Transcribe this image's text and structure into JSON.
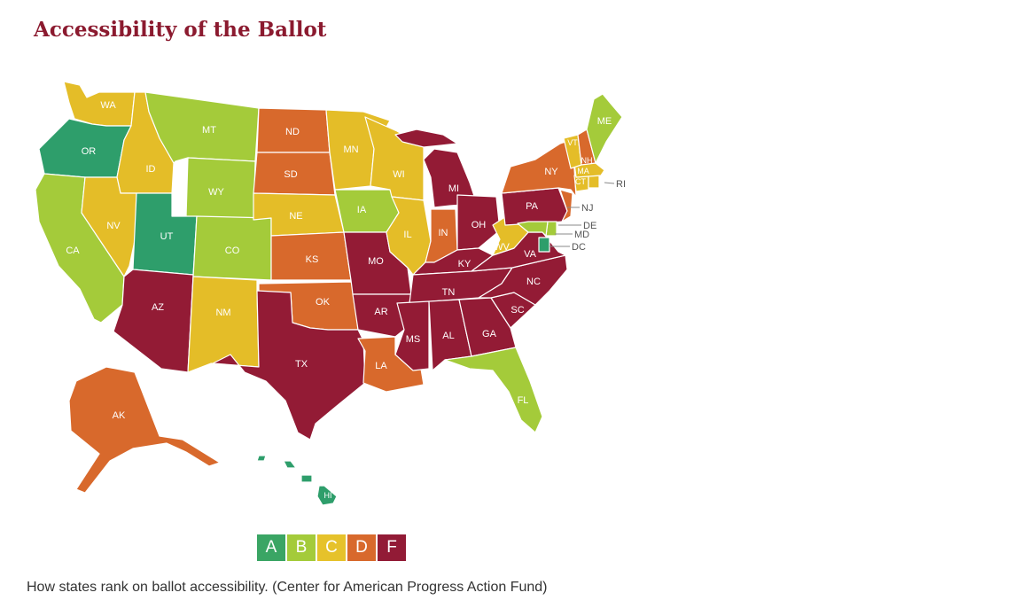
{
  "title": "Accessibility of the Ballot",
  "caption": "How states rank on ballot accessibility. (Center for American Progress Action Fund)",
  "legend": [
    {
      "grade": "A",
      "color": "#3aa564"
    },
    {
      "grade": "B",
      "color": "#a4cb3a"
    },
    {
      "grade": "C",
      "color": "#e6c22b"
    },
    {
      "grade": "D",
      "color": "#d8692c"
    },
    {
      "grade": "F",
      "color": "#921b36"
    }
  ],
  "map_colors": {
    "A": "#2e9e6b",
    "B": "#a4cb3a",
    "C": "#e4bd28",
    "D": "#d8692c",
    "F": "#931b35"
  },
  "states": [
    {
      "abbr": "WA",
      "grade": "C"
    },
    {
      "abbr": "OR",
      "grade": "A"
    },
    {
      "abbr": "CA",
      "grade": "B"
    },
    {
      "abbr": "ID",
      "grade": "C"
    },
    {
      "abbr": "NV",
      "grade": "C"
    },
    {
      "abbr": "MT",
      "grade": "B"
    },
    {
      "abbr": "WY",
      "grade": "B"
    },
    {
      "abbr": "UT",
      "grade": "A"
    },
    {
      "abbr": "AZ",
      "grade": "F"
    },
    {
      "abbr": "CO",
      "grade": "B"
    },
    {
      "abbr": "NM",
      "grade": "C"
    },
    {
      "abbr": "ND",
      "grade": "D"
    },
    {
      "abbr": "SD",
      "grade": "D"
    },
    {
      "abbr": "NE",
      "grade": "C"
    },
    {
      "abbr": "KS",
      "grade": "D"
    },
    {
      "abbr": "OK",
      "grade": "D"
    },
    {
      "abbr": "TX",
      "grade": "F"
    },
    {
      "abbr": "MN",
      "grade": "C"
    },
    {
      "abbr": "IA",
      "grade": "B"
    },
    {
      "abbr": "MO",
      "grade": "F"
    },
    {
      "abbr": "AR",
      "grade": "F"
    },
    {
      "abbr": "LA",
      "grade": "D"
    },
    {
      "abbr": "WI",
      "grade": "C"
    },
    {
      "abbr": "IL",
      "grade": "C"
    },
    {
      "abbr": "MI",
      "grade": "F"
    },
    {
      "abbr": "IN",
      "grade": "D"
    },
    {
      "abbr": "OH",
      "grade": "F"
    },
    {
      "abbr": "KY",
      "grade": "F"
    },
    {
      "abbr": "TN",
      "grade": "F"
    },
    {
      "abbr": "MS",
      "grade": "F"
    },
    {
      "abbr": "AL",
      "grade": "F"
    },
    {
      "abbr": "GA",
      "grade": "F"
    },
    {
      "abbr": "FL",
      "grade": "B"
    },
    {
      "abbr": "SC",
      "grade": "F"
    },
    {
      "abbr": "NC",
      "grade": "F"
    },
    {
      "abbr": "VA",
      "grade": "F"
    },
    {
      "abbr": "WV",
      "grade": "C"
    },
    {
      "abbr": "PA",
      "grade": "F"
    },
    {
      "abbr": "NY",
      "grade": "D"
    },
    {
      "abbr": "NJ",
      "grade": "D"
    },
    {
      "abbr": "DE",
      "grade": "B"
    },
    {
      "abbr": "MD",
      "grade": "B"
    },
    {
      "abbr": "DC",
      "grade": "A"
    },
    {
      "abbr": "CT",
      "grade": "C"
    },
    {
      "abbr": "RI",
      "grade": "C"
    },
    {
      "abbr": "MA",
      "grade": "C"
    },
    {
      "abbr": "VT",
      "grade": "C"
    },
    {
      "abbr": "NH",
      "grade": "D"
    },
    {
      "abbr": "ME",
      "grade": "B"
    },
    {
      "abbr": "AK",
      "grade": "D"
    },
    {
      "abbr": "HI",
      "grade": "A"
    }
  ]
}
